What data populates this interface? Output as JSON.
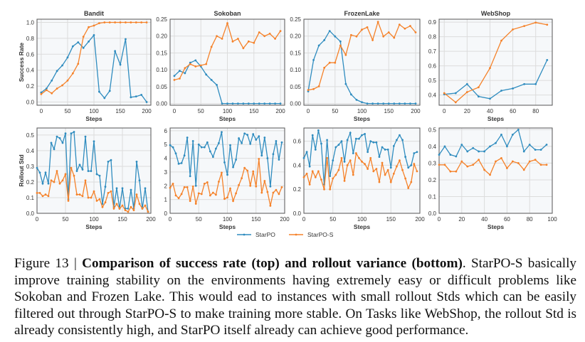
{
  "legend": [
    {
      "name": "StarPO",
      "color": "#2f8cbf"
    },
    {
      "name": "StarPO-S",
      "color": "#f5822a"
    }
  ],
  "caption": {
    "label": "Figure 13 | ",
    "bold": "Comparison of success rate (top) and rollout variance (bottom)",
    "rest": ". StarPO-S basically improve training stability on the environments having extremely easy or difficult problems like Sokoban and Frozen Lake. This would ead to instances with small rollout Stds which can be easily filtered out through StarPO-S to make training more stable. On Tasks like WebShop, the rollout Std is already consistently high, and StarPO itself already can achieve good performance."
  },
  "chart_data": [
    {
      "type": "line",
      "title": "Bandit",
      "xlabel": "Steps",
      "ylabel": "Success Rate",
      "xlim": [
        -8,
        208
      ],
      "ylim": [
        -0.04,
        1.04
      ],
      "xticks": [
        0,
        50,
        100,
        150,
        200
      ],
      "yticks": [
        0.0,
        0.2,
        0.4,
        0.6,
        0.8,
        1.0
      ],
      "ytick_fmt": 1,
      "grid": true,
      "x": [
        0,
        10,
        20,
        30,
        40,
        50,
        60,
        70,
        80,
        90,
        100,
        110,
        120,
        130,
        140,
        150,
        160,
        170,
        180,
        190,
        200
      ],
      "series": [
        {
          "name": "StarPO",
          "values": [
            0.12,
            0.17,
            0.27,
            0.39,
            0.46,
            0.56,
            0.7,
            0.75,
            0.68,
            0.76,
            0.84,
            0.13,
            0.05,
            0.14,
            0.64,
            0.47,
            0.79,
            0.06,
            0.07,
            0.09,
            0.0
          ]
        },
        {
          "name": "StarPO-S",
          "values": [
            0.1,
            0.15,
            0.11,
            0.17,
            0.21,
            0.27,
            0.36,
            0.48,
            0.82,
            0.94,
            0.96,
            0.99,
            1.0,
            1.0,
            1.0,
            1.0,
            1.0,
            1.0,
            1.0,
            1.0,
            1.0
          ]
        }
      ]
    },
    {
      "type": "line",
      "title": "Sokoban",
      "xlabel": "Steps",
      "ylabel": "",
      "xlim": [
        -8,
        208
      ],
      "ylim": [
        -0.005,
        0.25
      ],
      "xticks": [
        0,
        50,
        100,
        150,
        200
      ],
      "yticks": [
        0.0,
        0.05,
        0.1,
        0.15,
        0.2,
        0.25
      ],
      "ytick_fmt": 2,
      "grid": true,
      "x": [
        0,
        10,
        20,
        30,
        40,
        50,
        60,
        70,
        80,
        90,
        100,
        110,
        120,
        130,
        140,
        150,
        160,
        170,
        180,
        190,
        200
      ],
      "series": [
        {
          "name": "StarPO",
          "values": [
            0.082,
            0.097,
            0.09,
            0.121,
            0.128,
            0.11,
            0.086,
            0.07,
            0.055,
            0,
            0,
            0,
            0,
            0,
            0,
            0,
            0,
            0,
            0,
            0,
            0
          ]
        },
        {
          "name": "StarPO-S",
          "values": [
            0.07,
            0.074,
            0.105,
            0.117,
            0.11,
            0.113,
            0.117,
            0.168,
            0.2,
            0.192,
            0.238,
            0.184,
            0.192,
            0.164,
            0.184,
            0.18,
            0.211,
            0.2,
            0.207,
            0.192,
            0.215
          ]
        }
      ]
    },
    {
      "type": "line",
      "title": "FrozenLake",
      "xlabel": "Steps",
      "ylabel": "",
      "xlim": [
        -8,
        208
      ],
      "ylim": [
        -0.005,
        0.25
      ],
      "xticks": [
        0,
        50,
        100,
        150,
        200
      ],
      "yticks": [
        0.0,
        0.05,
        0.1,
        0.15,
        0.2,
        0.25
      ],
      "ytick_fmt": 2,
      "grid": true,
      "x": [
        0,
        10,
        20,
        30,
        40,
        50,
        60,
        70,
        80,
        90,
        100,
        110,
        120,
        130,
        140,
        150,
        160,
        170,
        180,
        190,
        200
      ],
      "series": [
        {
          "name": "StarPO",
          "values": [
            0.036,
            0.129,
            0.172,
            0.188,
            0.215,
            0.199,
            0.184,
            0.058,
            0.027,
            0.011,
            0.004,
            0,
            0,
            0,
            0,
            0,
            0,
            0,
            0,
            0,
            0
          ]
        },
        {
          "name": "StarPO-S",
          "values": [
            0.04,
            0.043,
            0.051,
            0.106,
            0.121,
            0.121,
            0.172,
            0.144,
            0.203,
            0.199,
            0.219,
            0.226,
            0.188,
            0.242,
            0.199,
            0.211,
            0.195,
            0.234,
            0.222,
            0.23,
            0.211
          ]
        }
      ]
    },
    {
      "type": "line",
      "title": "WebShop",
      "xlabel": "Steps",
      "ylabel": "",
      "xlim": [
        -4.5,
        94.5
      ],
      "ylim": [
        0.33,
        0.92
      ],
      "xticks": [
        0,
        20,
        40,
        60,
        80
      ],
      "yticks": [
        0.4,
        0.5,
        0.6,
        0.7,
        0.8,
        0.9
      ],
      "ytick_fmt": 1,
      "grid": true,
      "x": [
        0,
        10,
        20,
        30,
        40,
        50,
        60,
        70,
        80,
        90
      ],
      "series": [
        {
          "name": "StarPO",
          "values": [
            0.405,
            0.413,
            0.475,
            0.39,
            0.375,
            0.43,
            0.445,
            0.475,
            0.475,
            0.64
          ]
        },
        {
          "name": "StarPO-S",
          "values": [
            0.413,
            0.35,
            0.42,
            0.453,
            0.585,
            0.773,
            0.85,
            0.873,
            0.897,
            0.882
          ]
        }
      ]
    },
    {
      "type": "line",
      "title": "",
      "xlabel": "Steps",
      "ylabel": "Rollout Std",
      "xlim": [
        0,
        200
      ],
      "ylim": [
        0,
        0.545
      ],
      "xticks": [
        0,
        50,
        100,
        150,
        200
      ],
      "yticks": [
        0.0,
        0.1,
        0.2,
        0.3,
        0.4,
        0.5
      ],
      "ytick_fmt": 1,
      "grid": true,
      "x": [
        0,
        5,
        10,
        15,
        20,
        25,
        30,
        35,
        40,
        45,
        50,
        55,
        60,
        65,
        70,
        75,
        80,
        85,
        90,
        95,
        100,
        105,
        110,
        115,
        120,
        125,
        130,
        135,
        140,
        145,
        150,
        155,
        160,
        165,
        170,
        175,
        180,
        185,
        190,
        195
      ],
      "series": [
        {
          "name": "StarPO",
          "values": [
            0.29,
            0.26,
            0.19,
            0.26,
            0.19,
            0.45,
            0.41,
            0.49,
            0.48,
            0.45,
            0.51,
            0.09,
            0.51,
            0.52,
            0.27,
            0.31,
            0.28,
            0.49,
            0.27,
            0.27,
            0.46,
            0.25,
            0.24,
            0.06,
            0.17,
            0.33,
            0.34,
            0.04,
            0.16,
            0.03,
            0.16,
            0.03,
            0.03,
            0.15,
            0.03,
            0.33,
            0.21,
            0.03,
            0.16,
            0.01
          ]
        },
        {
          "name": "StarPO-S",
          "values": [
            0.13,
            0.13,
            0.11,
            0.12,
            0.11,
            0.21,
            0.2,
            0.27,
            0.19,
            0.21,
            0.25,
            0.08,
            0.29,
            0.24,
            0.12,
            0.12,
            0.11,
            0.21,
            0.1,
            0.1,
            0.14,
            0.08,
            0.09,
            0.04,
            0.07,
            0.13,
            0.14,
            0.03,
            0.06,
            0.03,
            0.05,
            0.02,
            0.01,
            0.04,
            0.02,
            0.12,
            0.06,
            0.03,
            0.05,
            0.01
          ]
        }
      ]
    },
    {
      "type": "line",
      "title": "",
      "xlabel": "Steps",
      "ylabel": "",
      "xlim": [
        0,
        200
      ],
      "ylim": [
        0,
        6.2
      ],
      "xticks": [
        0,
        50,
        100,
        150,
        200
      ],
      "yticks": [
        0,
        1,
        2,
        3,
        4,
        5,
        6
      ],
      "ytick_fmt": 0,
      "grid": true,
      "x": [
        0,
        5,
        10,
        15,
        20,
        25,
        30,
        35,
        40,
        45,
        50,
        55,
        60,
        65,
        70,
        75,
        80,
        85,
        90,
        95,
        100,
        105,
        110,
        115,
        120,
        125,
        130,
        135,
        140,
        145,
        150,
        155,
        160,
        165,
        170,
        175,
        180,
        185,
        190,
        195
      ],
      "series": [
        {
          "name": "StarPO",
          "values": [
            4.95,
            4.8,
            4.35,
            3.6,
            3.65,
            4.2,
            5.5,
            2.7,
            5.25,
            2.0,
            5.0,
            4.8,
            4.8,
            5.15,
            4.5,
            4.1,
            4.7,
            5.1,
            5.9,
            3.7,
            2.8,
            4.95,
            3.35,
            3.9,
            5.45,
            5.1,
            5.8,
            5.7,
            5.05,
            5.75,
            5.35,
            5.6,
            4.2,
            5.5,
            4.0,
            1.95,
            4.3,
            5.25,
            3.9,
            5.15
          ]
        },
        {
          "name": "StarPO-S",
          "values": [
            1.85,
            2.15,
            1.3,
            1.1,
            1.4,
            1.9,
            1.9,
            0.9,
            1.95,
            0.7,
            1.45,
            1.4,
            2.15,
            2.25,
            1.3,
            1.5,
            1.35,
            2.3,
            2.95,
            1.05,
            1.15,
            1.8,
            0.9,
            1.45,
            2.05,
            2.55,
            3.3,
            3.1,
            2.0,
            3.05,
            1.95,
            3.95,
            1.5,
            2.35,
            1.55,
            0.55,
            1.5,
            1.7,
            1.4,
            1.9
          ]
        }
      ]
    },
    {
      "type": "line",
      "title": "",
      "xlabel": "Steps",
      "ylabel": "",
      "xlim": [
        0,
        200
      ],
      "ylim": [
        0,
        0.71
      ],
      "xticks": [
        0,
        50,
        100,
        150,
        200
      ],
      "yticks": [
        0.0,
        0.2,
        0.4,
        0.6
      ],
      "ytick_fmt": 1,
      "grid": true,
      "x": [
        0,
        5,
        10,
        15,
        20,
        25,
        30,
        35,
        40,
        45,
        50,
        55,
        60,
        65,
        70,
        75,
        80,
        85,
        90,
        95,
        100,
        105,
        110,
        115,
        120,
        125,
        130,
        135,
        140,
        145,
        150,
        155,
        160,
        165,
        170,
        175,
        180,
        185,
        190,
        195
      ],
      "series": [
        {
          "name": "StarPO",
          "values": [
            0.46,
            0.51,
            0.39,
            0.65,
            0.53,
            0.69,
            0.58,
            0.24,
            0.61,
            0.31,
            0.44,
            0.55,
            0.57,
            0.6,
            0.43,
            0.61,
            0.67,
            0.5,
            0.62,
            0.62,
            0.65,
            0.66,
            0.51,
            0.6,
            0.59,
            0.59,
            0.47,
            0.55,
            0.53,
            0.53,
            0.38,
            0.56,
            0.61,
            0.65,
            0.61,
            0.47,
            0.38,
            0.4,
            0.5,
            0.51
          ]
        },
        {
          "name": "StarPO-S",
          "values": [
            0.3,
            0.33,
            0.24,
            0.35,
            0.3,
            0.35,
            0.28,
            0.2,
            0.46,
            0.2,
            0.29,
            0.32,
            0.36,
            0.46,
            0.27,
            0.4,
            0.44,
            0.32,
            0.5,
            0.46,
            0.43,
            0.41,
            0.37,
            0.46,
            0.35,
            0.37,
            0.26,
            0.42,
            0.32,
            0.36,
            0.26,
            0.33,
            0.39,
            0.44,
            0.36,
            0.29,
            0.21,
            0.26,
            0.41,
            0.35
          ]
        }
      ]
    },
    {
      "type": "line",
      "title": "",
      "xlabel": "Steps",
      "ylabel": "",
      "xlim": [
        0,
        100
      ],
      "ylim": [
        0,
        0.51
      ],
      "xticks": [
        0,
        20,
        40,
        60,
        80,
        100
      ],
      "yticks": [
        0.0,
        0.1,
        0.2,
        0.3,
        0.4,
        0.5
      ],
      "ytick_fmt": 1,
      "grid": true,
      "x": [
        0,
        5,
        10,
        15,
        20,
        25,
        30,
        35,
        40,
        45,
        50,
        55,
        60,
        65,
        70,
        75,
        80,
        85,
        90,
        95
      ],
      "series": [
        {
          "name": "StarPO",
          "values": [
            0.35,
            0.4,
            0.35,
            0.34,
            0.41,
            0.37,
            0.39,
            0.37,
            0.37,
            0.4,
            0.42,
            0.47,
            0.4,
            0.47,
            0.5,
            0.37,
            0.41,
            0.38,
            0.38,
            0.41
          ]
        },
        {
          "name": "StarPO-S",
          "values": [
            0.29,
            0.29,
            0.25,
            0.25,
            0.31,
            0.28,
            0.29,
            0.32,
            0.26,
            0.23,
            0.31,
            0.33,
            0.27,
            0.31,
            0.3,
            0.26,
            0.31,
            0.32,
            0.29,
            0.29
          ]
        }
      ]
    }
  ]
}
